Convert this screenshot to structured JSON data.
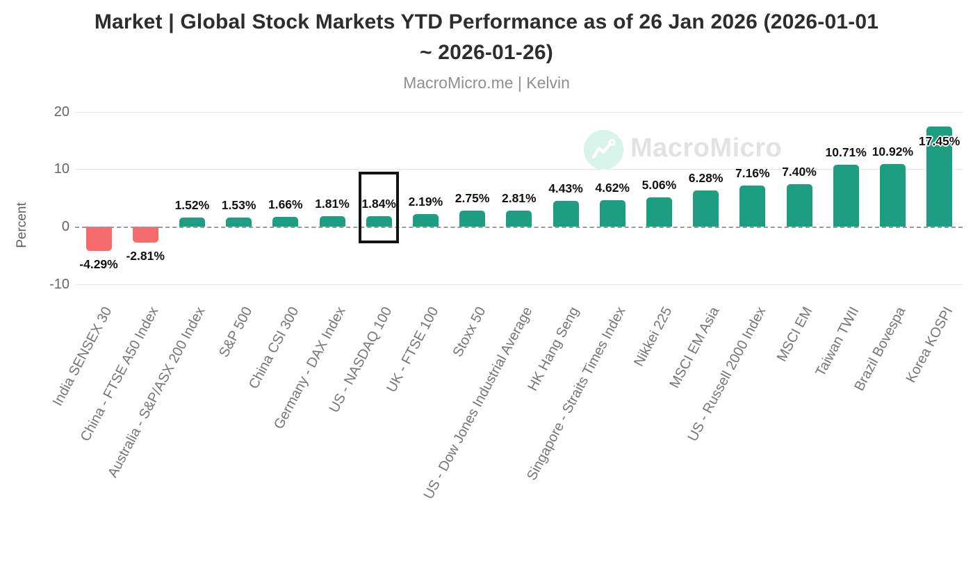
{
  "title": {
    "line1": "Market | Global Stock Markets YTD Performance as of 26 Jan 2026 (2026-01-01",
    "line2": "~ 2026-01-26)"
  },
  "subtitle": "MacroMicro.me | Kelvin",
  "watermark": {
    "icon": "macromicro-logo",
    "text": "MacroMicro"
  },
  "y_axis": {
    "label": "Percent",
    "tick_labels": [
      "20",
      "10",
      "0",
      "-10"
    ]
  },
  "chart_data": {
    "type": "bar",
    "title": "Market | Global Stock Markets YTD Performance as of 26 Jan 2026 (2026-01-01 ~ 2026-01-26)",
    "subtitle": "MacroMicro.me | Kelvin",
    "xlabel": "",
    "ylabel": "Percent",
    "ylim": [
      -13,
      20
    ],
    "yticks": [
      20,
      10,
      0,
      -10
    ],
    "grid": "horizontal",
    "zero_line_style": "dashed",
    "legend": "none",
    "categories": [
      "India SENSEX 30",
      "China - FTSE A50 Index",
      "Australia - S&P/ASX 200 Index",
      "S&P 500",
      "China CSI 300",
      "Germany - DAX Index",
      "US - NASDAQ 100",
      "UK - FTSE 100",
      "Stoxx 50",
      "US - Dow Jones Industrial Average",
      "HK Hang Seng",
      "Singapore - Straits Times Index",
      "Nikkei 225",
      "MSCI EM Asia",
      "US - Russell 2000 Index",
      "MSCI EM",
      "Taiwan TWII",
      "Brazil Bovespa",
      "Korea KOSPI"
    ],
    "values": [
      -4.29,
      -2.81,
      1.52,
      1.53,
      1.66,
      1.81,
      1.84,
      2.19,
      2.75,
      2.81,
      4.43,
      4.62,
      5.06,
      6.28,
      7.16,
      7.4,
      10.71,
      10.92,
      17.45
    ],
    "value_labels": [
      "-4.29%",
      "-2.81%",
      "1.52%",
      "1.53%",
      "1.66%",
      "1.81%",
      "1.84%",
      "2.19%",
      "2.75%",
      "2.81%",
      "4.43%",
      "4.62%",
      "5.06%",
      "6.28%",
      "7.16%",
      "7.40%",
      "10.71%",
      "10.92%",
      "17.45%"
    ],
    "positive_color": "#1e9e81",
    "negative_color": "#f66c6c",
    "highlighted_category": "US - NASDAQ 100"
  },
  "colors": {
    "title_text": "#2d2d2d",
    "subtitle_text": "#8f8f8f",
    "axis_text": "#646464",
    "category_text": "#767676",
    "gridline": "#e6e6e6",
    "zero_line": "#9a9a9a",
    "highlight_border": "#141414",
    "watermark_circle": "#d8f3e9",
    "watermark_text": "#e2e2e2"
  }
}
